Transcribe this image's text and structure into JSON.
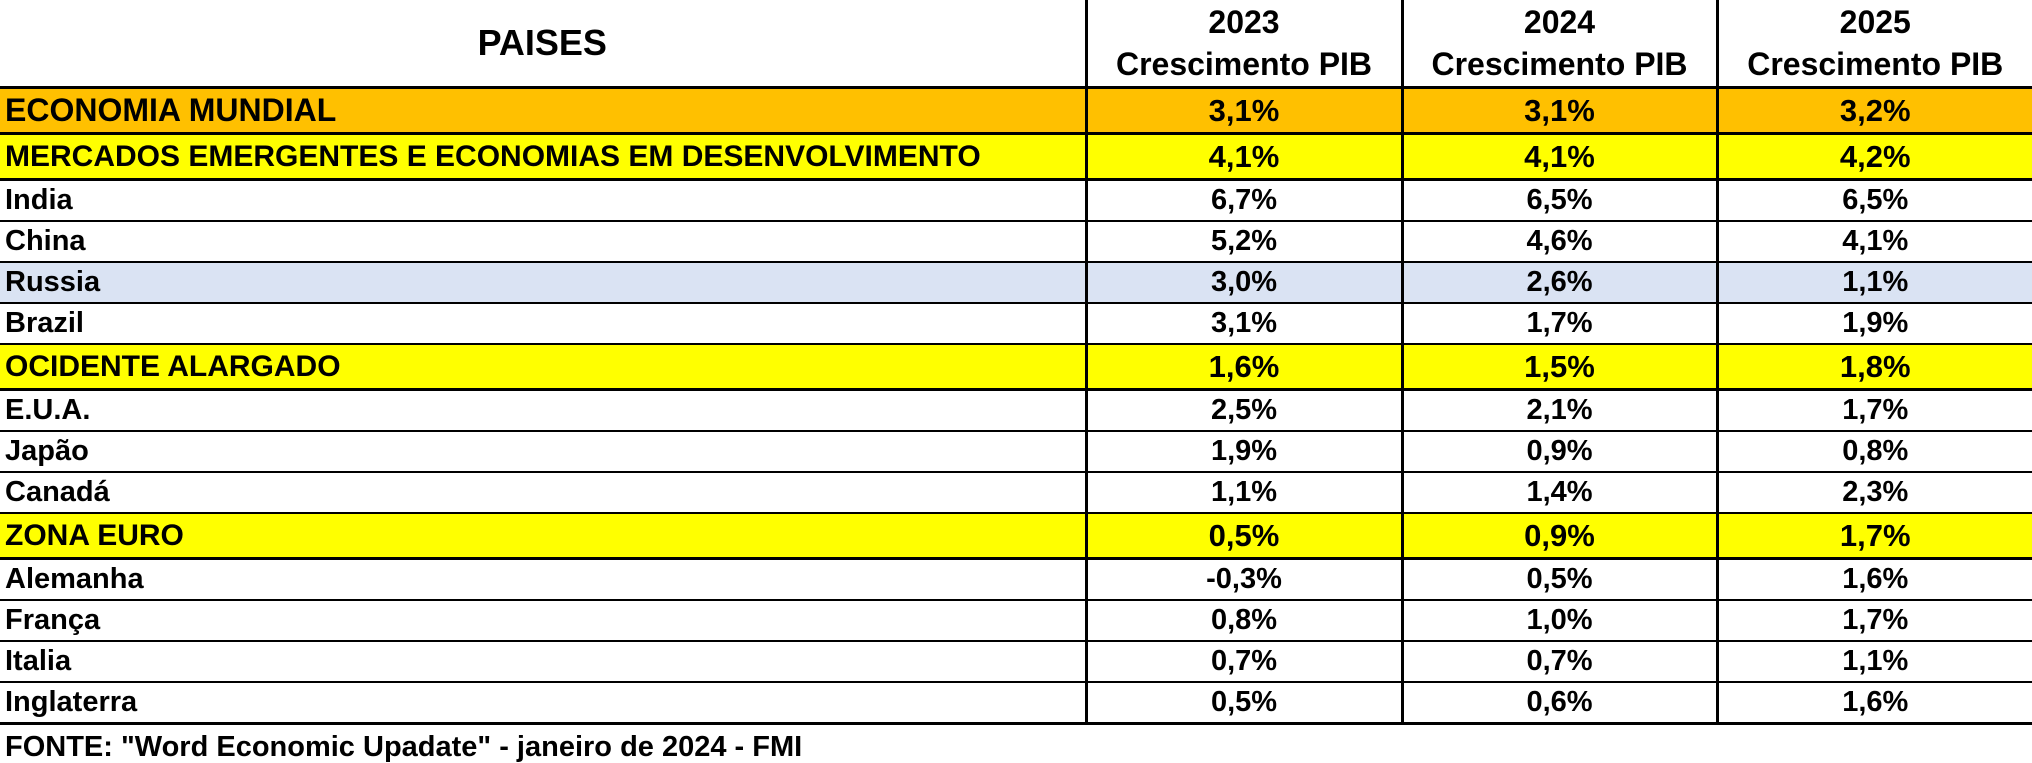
{
  "table": {
    "header": {
      "country": "PAISES",
      "columns": [
        {
          "year": "2023",
          "label": "Crescimento PIB"
        },
        {
          "year": "2024",
          "label": "Crescimento PIB"
        },
        {
          "year": "2025",
          "label": "Crescimento PIB"
        }
      ]
    },
    "rows": [
      {
        "name": "ECONOMIA MUNDIAL",
        "style": "orange",
        "values": [
          "3,1%",
          "3,1%",
          "3,2%"
        ]
      },
      {
        "name": "MERCADOS EMERGENTES E ECONOMIAS EM DESENVOLVIMENTO",
        "style": "yellow",
        "values": [
          "4,1%",
          "4,1%",
          "4,2%"
        ]
      },
      {
        "name": "India",
        "style": "plain",
        "values": [
          "6,7%",
          "6,5%",
          "6,5%"
        ]
      },
      {
        "name": "China",
        "style": "plain",
        "values": [
          "5,2%",
          "4,6%",
          "4,1%"
        ]
      },
      {
        "name": "Russia",
        "style": "blue",
        "values": [
          "3,0%",
          "2,6%",
          "1,1%"
        ]
      },
      {
        "name": "Brazil",
        "style": "plain",
        "values": [
          "3,1%",
          "1,7%",
          "1,9%"
        ]
      },
      {
        "name": "OCIDENTE ALARGADO",
        "style": "yellow",
        "values": [
          "1,6%",
          "1,5%",
          "1,8%"
        ]
      },
      {
        "name": "E.U.A.",
        "style": "plain",
        "values": [
          "2,5%",
          "2,1%",
          "1,7%"
        ]
      },
      {
        "name": "Japão",
        "style": "plain",
        "values": [
          "1,9%",
          "0,9%",
          "0,8%"
        ]
      },
      {
        "name": "Canadá",
        "style": "plain",
        "values": [
          "1,1%",
          "1,4%",
          "2,3%"
        ]
      },
      {
        "name": "ZONA EURO",
        "style": "yellow",
        "values": [
          "0,5%",
          "0,9%",
          "1,7%"
        ]
      },
      {
        "name": "Alemanha",
        "style": "plain",
        "values": [
          "-0,3%",
          "0,5%",
          "1,6%"
        ]
      },
      {
        "name": "França",
        "style": "plain",
        "values": [
          "0,8%",
          "1,0%",
          "1,7%"
        ]
      },
      {
        "name": "Italia",
        "style": "plain",
        "values": [
          "0,7%",
          "0,7%",
          "1,1%"
        ]
      },
      {
        "name": "Inglaterra",
        "style": "plain",
        "values": [
          "0,5%",
          "0,6%",
          "1,6%"
        ]
      }
    ]
  },
  "source": "FONTE: \"Word Economic Upadate\" - janeiro de 2024 - FMI",
  "colors": {
    "orange_highlight": "#ffc000",
    "yellow_highlight": "#ffff00",
    "blue_highlight": "#dae3f3"
  }
}
